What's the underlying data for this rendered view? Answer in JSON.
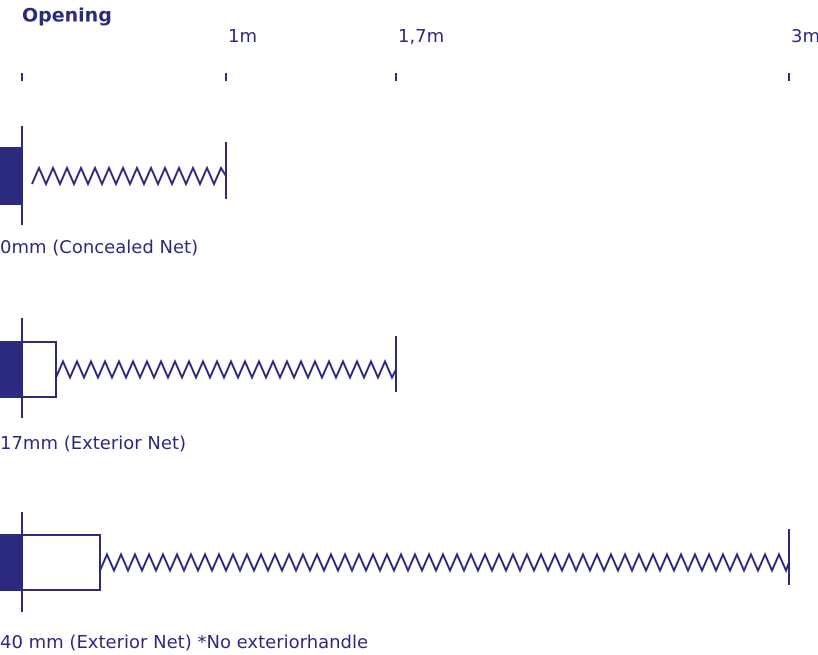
{
  "title": "Opening",
  "scale": {
    "labels": [
      "1m",
      "1,7m",
      "3m"
    ]
  },
  "rows": [
    {
      "label": "0mm (Concealed Net)"
    },
    {
      "label": "17mm (Exterior Net)"
    },
    {
      "label": "40 mm (Exterior Net) *No exteriorhandle"
    }
  ]
}
